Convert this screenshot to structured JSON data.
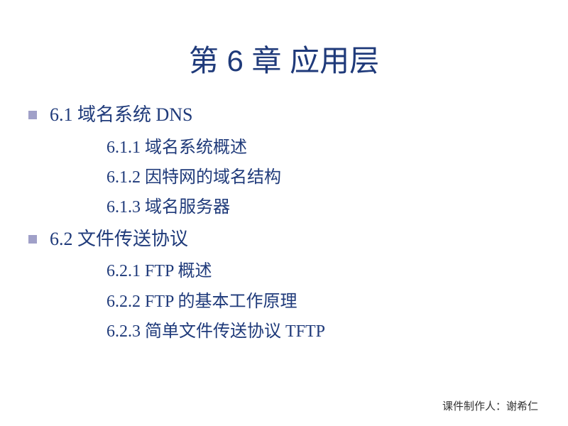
{
  "slide": {
    "title": "第 6 章  应用层",
    "title_color": "#1f3a7a",
    "title_fontsize": 42,
    "background_color": "#ffffff",
    "bullet_color": "#a0a0c8",
    "text_color": "#1f3a7a",
    "level1_fontsize": 26,
    "level2_fontsize": 24,
    "sections": [
      {
        "heading": "6.1  域名系统 DNS",
        "items": [
          "6.1.1  域名系统概述",
          "6.1.2  因特网的域名结构",
          "6.1.3  域名服务器"
        ]
      },
      {
        "heading": "6.2  文件传送协议",
        "items": [
          "6.2.1  FTP 概述",
          "6.2.2  FTP 的基本工作原理",
          "6.2.3  简单文件传送协议 TFTP"
        ]
      }
    ],
    "footer": "课件制作人：谢希仁",
    "footer_color": "#333333",
    "footer_fontsize": 15
  }
}
